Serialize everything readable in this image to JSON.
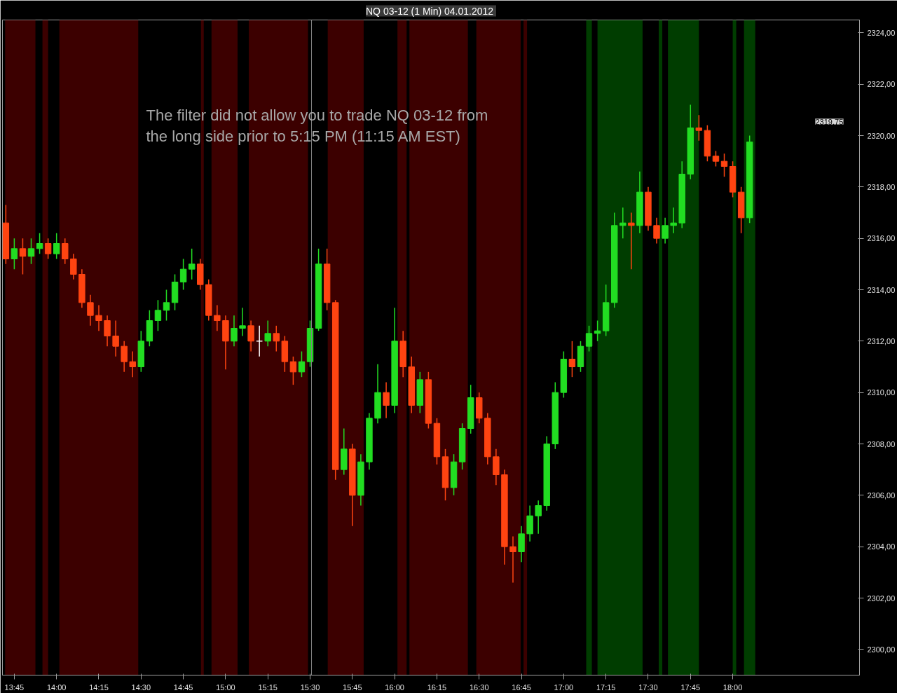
{
  "chart_data": {
    "type": "candlestick",
    "title": "NQ 03-12 (1 Min)  04.01.2012",
    "x": [
      13.7,
      13.75,
      13.8,
      13.85,
      13.9,
      13.95,
      14,
      14.05,
      14.1,
      14.15,
      14.2,
      14.25,
      14.3,
      14.35,
      14.4,
      14.45,
      14.5,
      14.55,
      14.6,
      14.65,
      14.7,
      14.75,
      14.8,
      14.85,
      14.9,
      14.95,
      15,
      15.05,
      15.1,
      15.15,
      15.2,
      15.25,
      15.3,
      15.35,
      15.4,
      15.45,
      15.5,
      15.55,
      15.6,
      15.65,
      15.7,
      15.75,
      15.8,
      15.85,
      15.9,
      15.95,
      16,
      16.05,
      16.1,
      16.15,
      16.2,
      16.25,
      16.3,
      16.35,
      16.4,
      16.45,
      16.5,
      16.55,
      16.6,
      16.65,
      16.7,
      16.75,
      16.8,
      16.85,
      16.9,
      16.95,
      17,
      17.05,
      17.1,
      17.15,
      17.2,
      17.25,
      17.3,
      17.35,
      17.4,
      17.45,
      17.5,
      17.55,
      17.6,
      17.65,
      17.7,
      17.75,
      17.8,
      17.85,
      17.9,
      17.95,
      18,
      18.05,
      18.1
    ],
    "ohlc": [
      [
        2316.6,
        2317.3,
        2315.0,
        2315.2
      ],
      [
        2315.2,
        2316.0,
        2314.8,
        2315.6
      ],
      [
        2315.6,
        2316.0,
        2314.6,
        2315.3
      ],
      [
        2315.3,
        2316.0,
        2315.0,
        2315.6
      ],
      [
        2315.6,
        2316.2,
        2315.4,
        2315.8
      ],
      [
        2315.8,
        2316.0,
        2315.2,
        2315.4
      ],
      [
        2315.4,
        2316.2,
        2315.2,
        2315.8
      ],
      [
        2315.8,
        2316.0,
        2315.0,
        2315.2
      ],
      [
        2315.2,
        2315.4,
        2314.4,
        2314.6
      ],
      [
        2314.6,
        2314.8,
        2313.3,
        2313.5
      ],
      [
        2313.5,
        2313.8,
        2312.6,
        2313.0
      ],
      [
        2313.0,
        2313.4,
        2312.4,
        2312.8
      ],
      [
        2312.8,
        2313.0,
        2311.8,
        2312.2
      ],
      [
        2312.2,
        2312.8,
        2311.4,
        2311.8
      ],
      [
        2311.8,
        2312.0,
        2310.8,
        2311.2
      ],
      [
        2311.2,
        2311.6,
        2310.6,
        2311.0
      ],
      [
        2311.0,
        2312.4,
        2310.8,
        2312.0
      ],
      [
        2312.0,
        2313.2,
        2311.8,
        2312.8
      ],
      [
        2312.8,
        2313.6,
        2312.4,
        2313.2
      ],
      [
        2313.2,
        2314.0,
        2312.8,
        2313.5
      ],
      [
        2313.5,
        2314.6,
        2313.2,
        2314.3
      ],
      [
        2314.3,
        2315.2,
        2314.0,
        2314.8
      ],
      [
        2314.8,
        2315.6,
        2314.4,
        2315.0
      ],
      [
        2315.0,
        2315.2,
        2314.0,
        2314.2
      ],
      [
        2314.2,
        2314.4,
        2312.8,
        2313.0
      ],
      [
        2313.0,
        2313.4,
        2312.4,
        2312.8
      ],
      [
        2312.8,
        2313.0,
        2310.9,
        2312.0
      ],
      [
        2312.0,
        2313.0,
        2311.8,
        2312.5
      ],
      [
        2312.5,
        2313.3,
        2312.2,
        2312.6
      ],
      [
        2312.6,
        2312.8,
        2311.6,
        2312.0
      ],
      [
        2312.0,
        2312.6,
        2311.4,
        2312.0
      ],
      [
        2312.0,
        2312.8,
        2311.8,
        2312.3
      ],
      [
        2312.3,
        2312.6,
        2311.6,
        2312.0
      ],
      [
        2312.0,
        2312.2,
        2310.8,
        2311.2
      ],
      [
        2311.2,
        2311.4,
        2310.3,
        2310.8
      ],
      [
        2310.8,
        2311.6,
        2310.6,
        2311.2
      ],
      [
        2311.2,
        2312.8,
        2311.0,
        2312.5
      ],
      [
        2312.5,
        2315.6,
        2312.4,
        2315.0
      ],
      [
        2315.0,
        2315.6,
        2313.2,
        2313.5
      ],
      [
        2313.5,
        2313.6,
        2306.6,
        2307.0
      ],
      [
        2307.0,
        2308.6,
        2306.8,
        2307.8
      ],
      [
        2307.8,
        2308.0,
        2304.8,
        2306.0
      ],
      [
        2306.0,
        2307.6,
        2305.6,
        2307.3
      ],
      [
        2307.3,
        2309.2,
        2307.0,
        2309.0
      ],
      [
        2309.0,
        2311.1,
        2308.8,
        2310.0
      ],
      [
        2310.0,
        2310.4,
        2309.0,
        2309.5
      ],
      [
        2309.5,
        2313.3,
        2309.2,
        2312.0
      ],
      [
        2312.0,
        2312.4,
        2310.6,
        2311.0
      ],
      [
        2311.0,
        2311.4,
        2309.2,
        2309.5
      ],
      [
        2309.5,
        2310.8,
        2309.2,
        2310.5
      ],
      [
        2310.5,
        2310.8,
        2308.6,
        2308.8
      ],
      [
        2308.8,
        2309.0,
        2307.2,
        2307.5
      ],
      [
        2307.5,
        2307.8,
        2305.8,
        2306.3
      ],
      [
        2306.3,
        2307.6,
        2306.0,
        2307.3
      ],
      [
        2307.3,
        2308.8,
        2307.0,
        2308.6
      ],
      [
        2308.6,
        2310.3,
        2308.4,
        2309.8
      ],
      [
        2309.8,
        2310.0,
        2308.8,
        2309.0
      ],
      [
        2309.0,
        2309.2,
        2307.2,
        2307.5
      ],
      [
        2307.5,
        2307.8,
        2306.4,
        2306.8
      ],
      [
        2306.8,
        2307.0,
        2303.3,
        2304.0
      ],
      [
        2304.0,
        2304.4,
        2302.6,
        2303.8
      ],
      [
        2303.8,
        2304.8,
        2303.4,
        2304.5
      ],
      [
        2304.5,
        2305.6,
        2304.2,
        2305.2
      ],
      [
        2305.2,
        2305.8,
        2304.5,
        2305.6
      ],
      [
        2305.6,
        2308.3,
        2305.4,
        2308.0
      ],
      [
        2308.0,
        2310.4,
        2307.8,
        2310.0
      ],
      [
        2310.0,
        2311.6,
        2309.8,
        2311.3
      ],
      [
        2311.3,
        2312.0,
        2310.6,
        2311.0
      ],
      [
        2311.0,
        2312.0,
        2310.8,
        2311.8
      ],
      [
        2311.8,
        2312.6,
        2311.6,
        2312.3
      ],
      [
        2312.3,
        2312.8,
        2312.0,
        2312.4
      ],
      [
        2312.4,
        2314.2,
        2312.2,
        2313.5
      ],
      [
        2313.5,
        2317.0,
        2313.3,
        2316.5
      ],
      [
        2316.5,
        2317.2,
        2316.0,
        2316.6
      ],
      [
        2316.6,
        2317.0,
        2314.8,
        2316.5
      ],
      [
        2316.5,
        2318.6,
        2316.2,
        2317.8
      ],
      [
        2317.8,
        2318.0,
        2316.3,
        2316.5
      ],
      [
        2316.5,
        2316.8,
        2315.8,
        2316.0
      ],
      [
        2316.0,
        2316.8,
        2315.8,
        2316.5
      ],
      [
        2316.5,
        2317.2,
        2316.2,
        2316.6
      ],
      [
        2316.6,
        2319.0,
        2316.4,
        2318.5
      ],
      [
        2318.5,
        2321.2,
        2318.3,
        2320.3
      ],
      [
        2320.3,
        2320.8,
        2319.8,
        2320.2
      ],
      [
        2320.2,
        2320.4,
        2319.0,
        2319.2
      ],
      [
        2319.2,
        2319.4,
        2318.8,
        2319.0
      ],
      [
        2319.0,
        2319.3,
        2318.4,
        2318.8
      ],
      [
        2318.8,
        2319.0,
        2317.6,
        2317.8
      ],
      [
        2317.8,
        2318.0,
        2316.2,
        2316.8
      ],
      [
        2316.8,
        2320.0,
        2316.6,
        2319.75
      ]
    ],
    "colors": [
      "#ff4411",
      "#22dd22",
      "#ff4411",
      "#22dd22",
      "#22dd22",
      "#ff4411",
      "#22dd22",
      "#ff4411",
      "#ff4411",
      "#ff4411",
      "#ff4411",
      "#ff4411",
      "#ff4411",
      "#ff4411",
      "#ff4411",
      "#ff4411",
      "#22dd22",
      "#22dd22",
      "#22dd22",
      "#22dd22",
      "#22dd22",
      "#22dd22",
      "#22dd22",
      "#ff4411",
      "#ff4411",
      "#ff4411",
      "#ff4411",
      "#22dd22",
      "#22dd22",
      "#ff4411",
      "#ffffff",
      "#22dd22",
      "#ff4411",
      "#ff4411",
      "#ff4411",
      "#22dd22",
      "#22dd22",
      "#22dd22",
      "#ff4411",
      "#ff4411",
      "#22dd22",
      "#ff4411",
      "#22dd22",
      "#22dd22",
      "#22dd22",
      "#ff4411",
      "#22dd22",
      "#ff4411",
      "#ff4411",
      "#22dd22",
      "#ff4411",
      "#ff4411",
      "#ff4411",
      "#22dd22",
      "#22dd22",
      "#22dd22",
      "#ff4411",
      "#ff4411",
      "#ff4411",
      "#ff4411",
      "#ff4411",
      "#22dd22",
      "#22dd22",
      "#22dd22",
      "#22dd22",
      "#22dd22",
      "#22dd22",
      "#ff4411",
      "#22dd22",
      "#22dd22",
      "#22dd22",
      "#22dd22",
      "#22dd22",
      "#22dd22",
      "#ff4411",
      "#22dd22",
      "#ff4411",
      "#ff4411",
      "#22dd22",
      "#22dd22",
      "#22dd22",
      "#22dd22",
      "#ff4411",
      "#ff4411",
      "#ff4411",
      "#ff4411",
      "#ff4411",
      "#ff4411",
      "#22dd22"
    ],
    "xlim": [
      13.68,
      18.75
    ],
    "xticks": [
      {
        "value": 13.75,
        "label": "13:45"
      },
      {
        "value": 14,
        "label": "14:00"
      },
      {
        "value": 14.25,
        "label": "14:15"
      },
      {
        "value": 14.5,
        "label": "14:30"
      },
      {
        "value": 14.75,
        "label": "14:45"
      },
      {
        "value": 15,
        "label": "15:00"
      },
      {
        "value": 15.25,
        "label": "15:15"
      },
      {
        "value": 15.5,
        "label": "15:30"
      },
      {
        "value": 15.75,
        "label": "15:45"
      },
      {
        "value": 16,
        "label": "16:00"
      },
      {
        "value": 16.25,
        "label": "16:15"
      },
      {
        "value": 16.5,
        "label": "16:30"
      },
      {
        "value": 16.75,
        "label": "16:45"
      },
      {
        "value": 17,
        "label": "17:00"
      },
      {
        "value": 17.25,
        "label": "17:15"
      },
      {
        "value": 17.5,
        "label": "17:30"
      },
      {
        "value": 17.75,
        "label": "17:45"
      },
      {
        "value": 18,
        "label": "18:00"
      }
    ],
    "ylim": [
      2299.0,
      2324.5
    ],
    "yticks": [
      {
        "value": 2300,
        "label": "2300,00"
      },
      {
        "value": 2302,
        "label": "2302,00"
      },
      {
        "value": 2304,
        "label": "2304,00"
      },
      {
        "value": 2306,
        "label": "2306,00"
      },
      {
        "value": 2308,
        "label": "2308,00"
      },
      {
        "value": 2310,
        "label": "2310,00"
      },
      {
        "value": 2312,
        "label": "2312,00"
      },
      {
        "value": 2314,
        "label": "2314,00"
      },
      {
        "value": 2316,
        "label": "2316,00"
      },
      {
        "value": 2318,
        "label": "2318,00"
      },
      {
        "value": 2320,
        "label": "2320,00"
      },
      {
        "value": 2322,
        "label": "2322,00"
      },
      {
        "value": 2324,
        "label": "2324,00"
      }
    ],
    "grid": false,
    "bands": [
      {
        "axis": "x",
        "from": 13.6958,
        "to": 13.875,
        "color": "#3c0000"
      },
      {
        "axis": "x",
        "from": 13.9167,
        "to": 13.95,
        "color": "#3c0000"
      },
      {
        "axis": "x",
        "from": 14.0167,
        "to": 14.4833,
        "color": "#3c0000"
      },
      {
        "axis": "x",
        "from": 14.8542,
        "to": 14.8708,
        "color": "#3c0000"
      },
      {
        "axis": "x",
        "from": 14.9167,
        "to": 15.0708,
        "color": "#3c0000"
      },
      {
        "axis": "x",
        "from": 15.1375,
        "to": 15.4875,
        "color": "#3c0000"
      },
      {
        "axis": "x",
        "from": 15.6042,
        "to": 15.8167,
        "color": "#3c0000"
      },
      {
        "axis": "x",
        "from": 16.0167,
        "to": 16.0708,
        "color": "#3c0000"
      },
      {
        "axis": "x",
        "from": 16.0875,
        "to": 16.4333,
        "color": "#3c0000"
      },
      {
        "axis": "x",
        "from": 16.4833,
        "to": 16.7458,
        "color": "#3c0000"
      },
      {
        "axis": "x",
        "from": 16.7625,
        "to": 16.7833,
        "color": "#3c0000"
      },
      {
        "axis": "x",
        "from": 17.1333,
        "to": 17.1667,
        "color": "#003d00"
      },
      {
        "axis": "x",
        "from": 17.2,
        "to": 17.4667,
        "color": "#003d00"
      },
      {
        "axis": "x",
        "from": 17.5625,
        "to": 17.5833,
        "color": "#003d00"
      },
      {
        "axis": "x",
        "from": 17.6167,
        "to": 17.8,
        "color": "#003d00"
      },
      {
        "axis": "x",
        "from": 18.0,
        "to": 18.0208,
        "color": "#003d00"
      },
      {
        "axis": "x",
        "from": 18.0667,
        "to": 18.1333,
        "color": "#003d00"
      }
    ],
    "ref_lines": [
      {
        "axis": "x",
        "value": 15.5083,
        "color": "#808080"
      }
    ],
    "annotations": [
      "The filter did not allow you to trade NQ 03-12 from\n the long side prior to 5:15 PM (11:15 AM EST)",
      "2319,75"
    ]
  }
}
